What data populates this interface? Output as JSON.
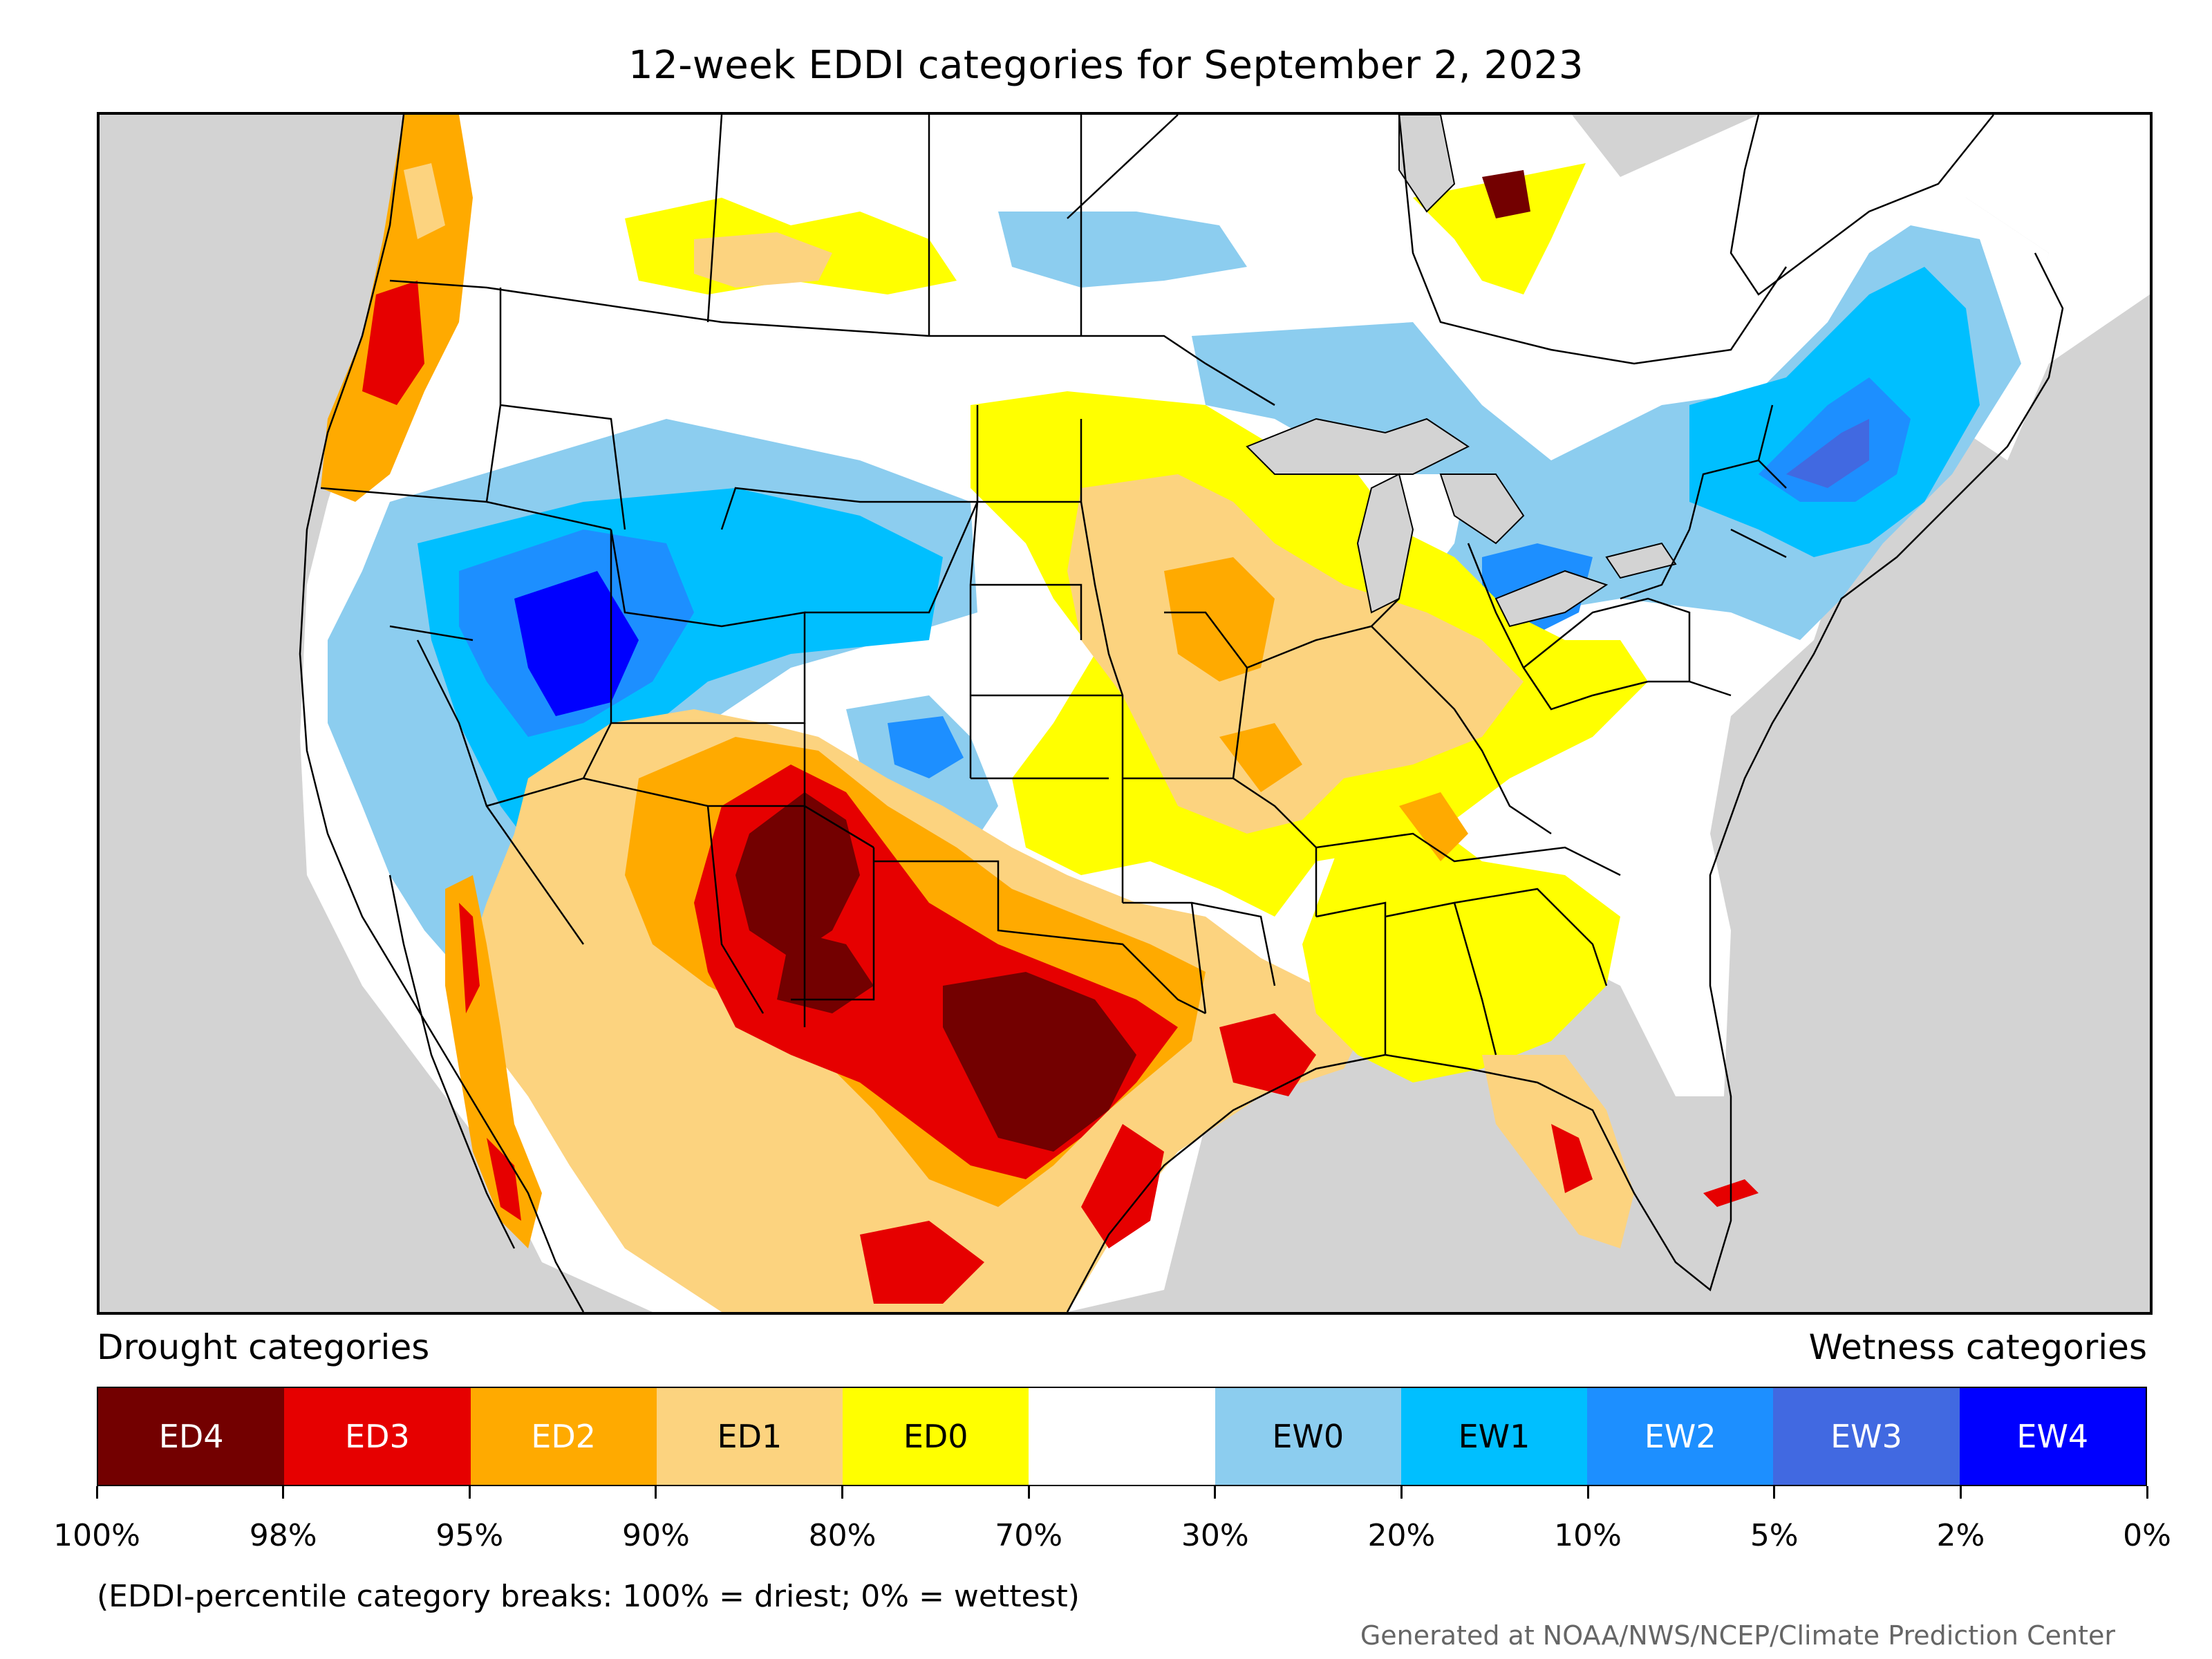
{
  "title": "12-week EDDI categories for September 2, 2023",
  "legend": {
    "drought_heading": "Drought categories",
    "wetness_heading": "Wetness categories",
    "categories": [
      {
        "label": "ED4",
        "color": "#730000",
        "text_color": "#ffffff"
      },
      {
        "label": "ED3",
        "color": "#e60000",
        "text_color": "#ffffff"
      },
      {
        "label": "ED2",
        "color": "#ffaa00",
        "text_color": "#ffffff"
      },
      {
        "label": "ED1",
        "color": "#fcd37f",
        "text_color": "#000000"
      },
      {
        "label": "ED0",
        "color": "#ffff00",
        "text_color": "#000000"
      },
      {
        "label": "",
        "color": "#ffffff",
        "text_color": "#000000"
      },
      {
        "label": "EW0",
        "color": "#8ccdef",
        "text_color": "#000000"
      },
      {
        "label": "EW1",
        "color": "#00bfff",
        "text_color": "#000000"
      },
      {
        "label": "EW2",
        "color": "#1d8fff",
        "text_color": "#ffffff"
      },
      {
        "label": "EW3",
        "color": "#4169e1",
        "text_color": "#ffffff"
      },
      {
        "label": "EW4",
        "color": "#0000ff",
        "text_color": "#ffffff"
      }
    ],
    "breaks": [
      "100%",
      "98%",
      "95%",
      "90%",
      "80%",
      "70%",
      "30%",
      "20%",
      "10%",
      "5%",
      "2%",
      "0%"
    ],
    "note": "(EDDI-percentile category breaks: 100% = driest; 0% = wettest)"
  },
  "credit": "Generated at NOAA/NWS/NCEP/Climate Prediction Center"
}
